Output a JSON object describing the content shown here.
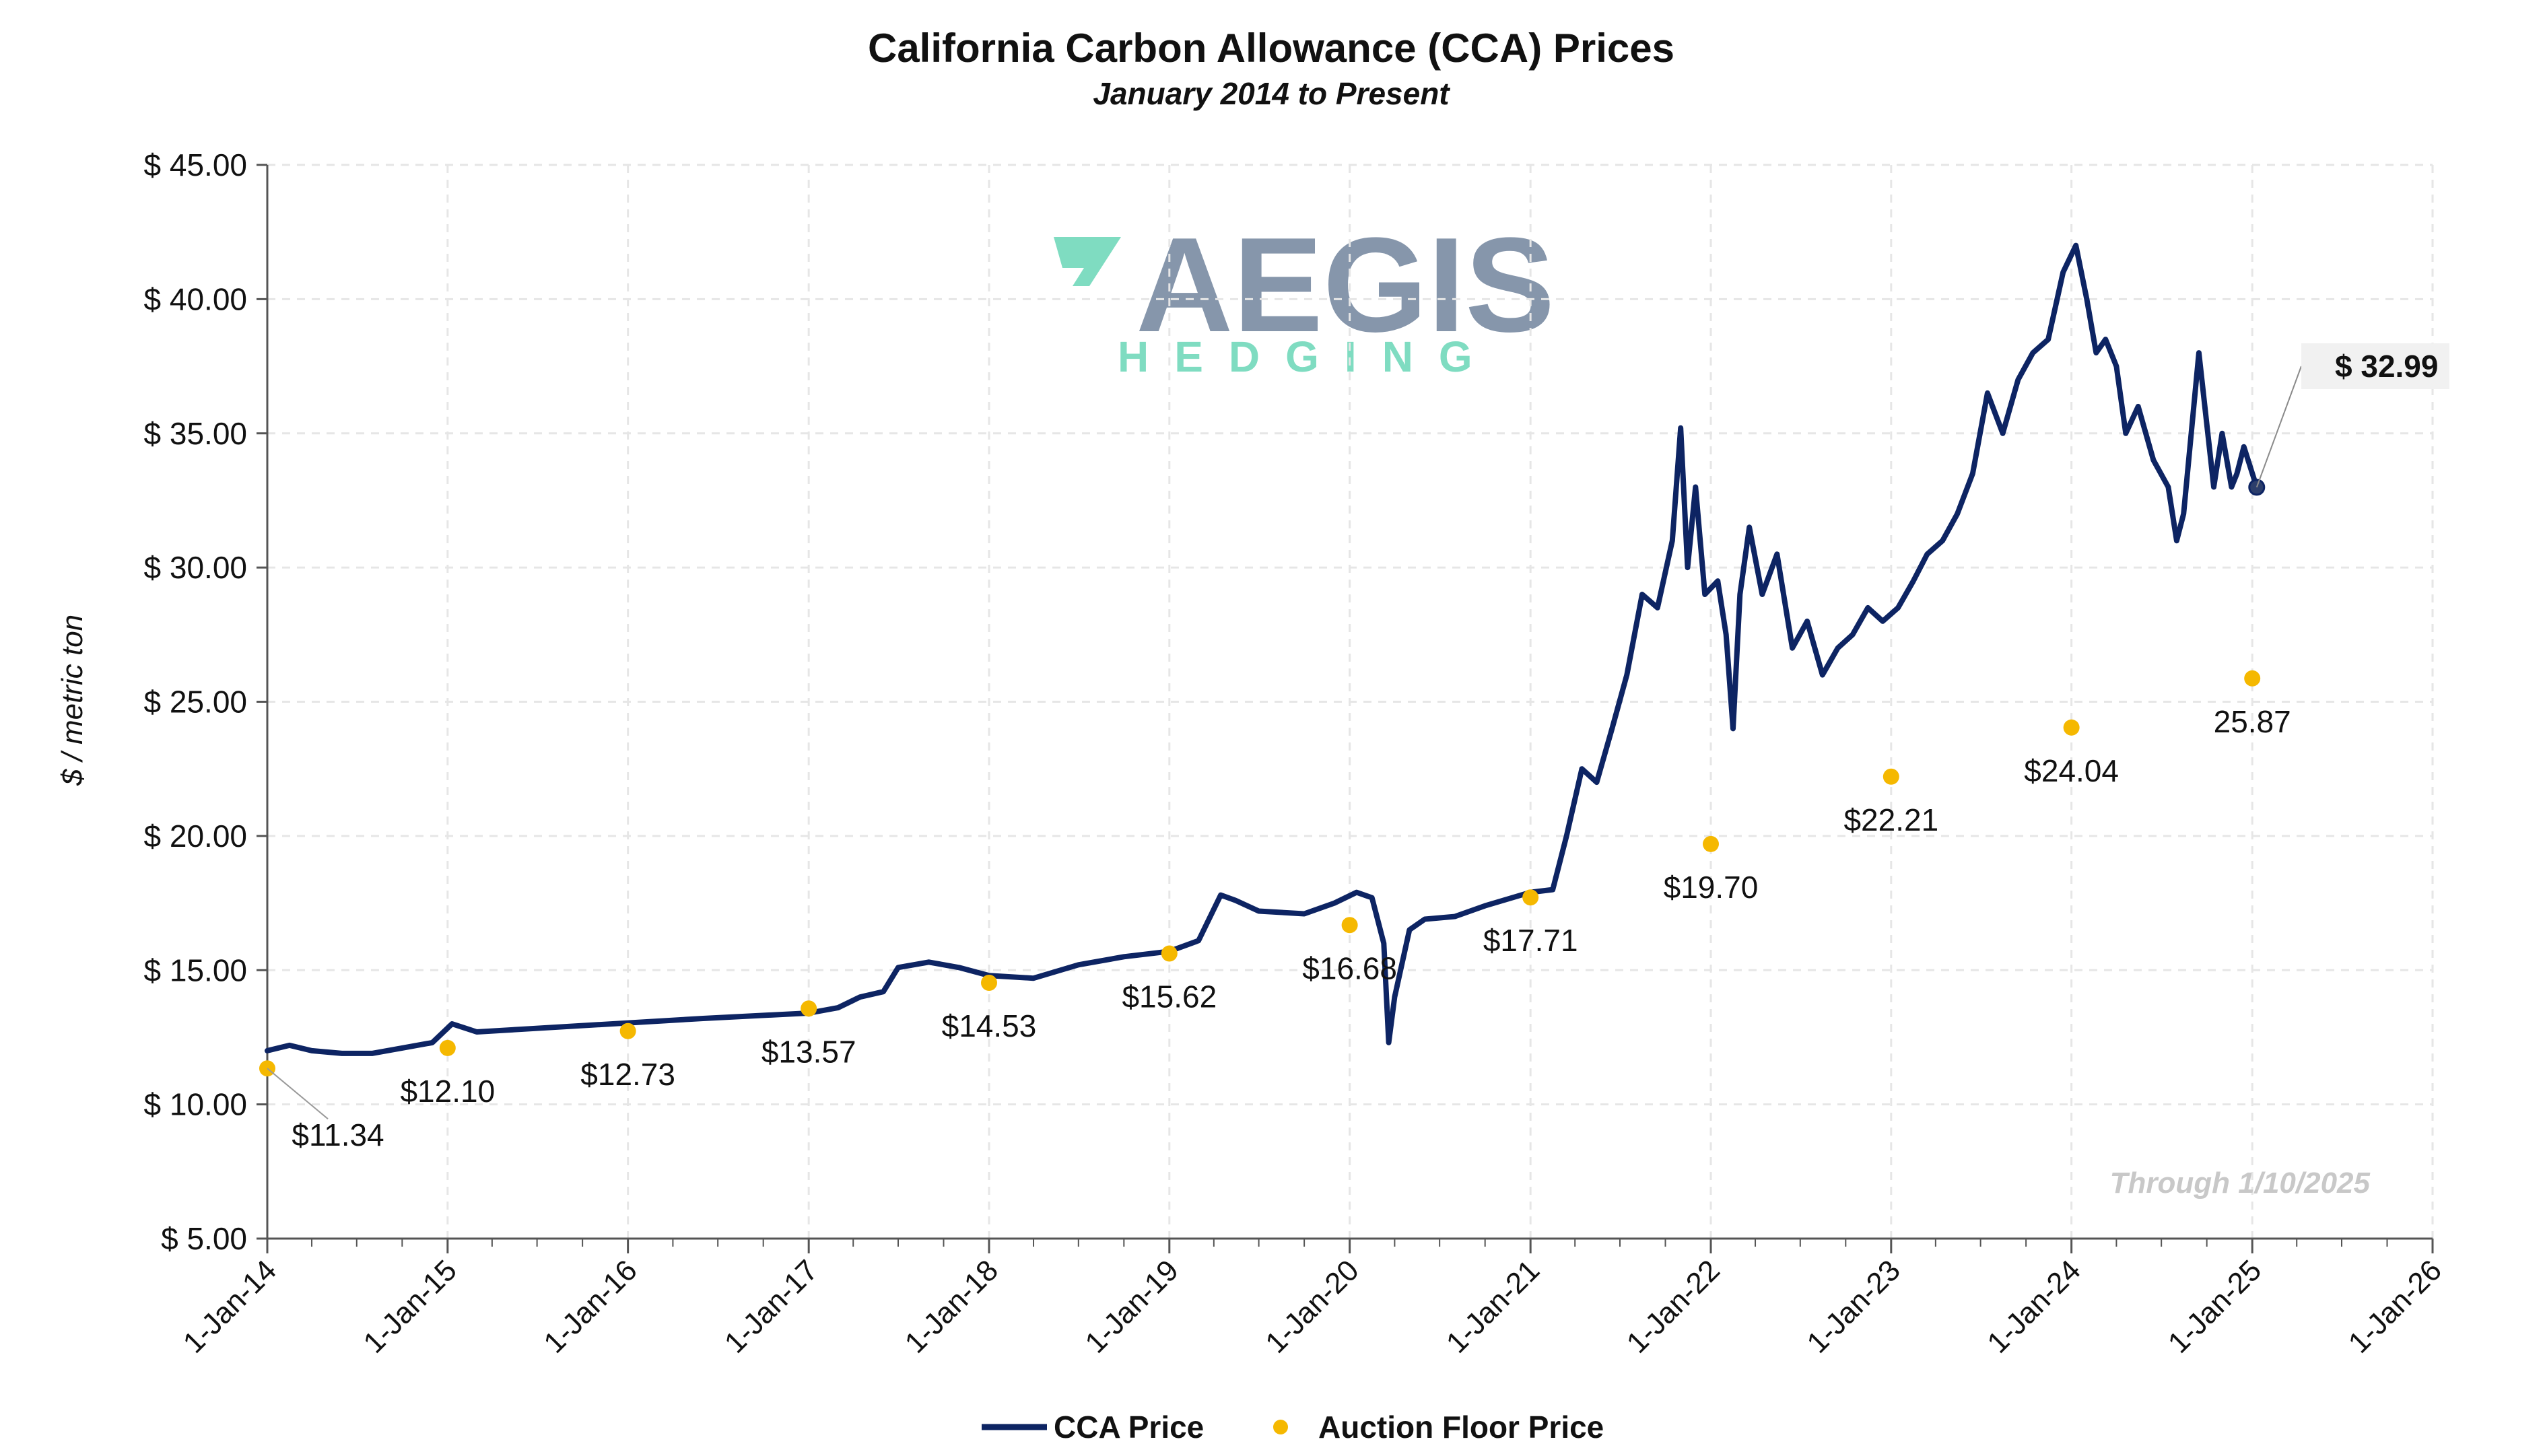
{
  "colors": {
    "cca_line": "#0d2463",
    "floor_dot": "#f5b800",
    "grid": "#e6e6e6",
    "axis": "#555555",
    "callout_box": "#f1f1f1",
    "logo_gray": "#8696ab",
    "logo_teal": "#7fdcc1"
  },
  "logo": {
    "main": "AEGIS",
    "sub": "HEDGING"
  },
  "annotations": {
    "through": "Through 1/10/2025",
    "last_price": "$ 32.99"
  },
  "chart_data": {
    "type": "line",
    "title": "California Carbon Allowance (CCA) Prices",
    "subtitle": "January 2014 to Present",
    "xlabel": "",
    "ylabel": "$ / metric ton",
    "xlim": [
      "2014-01-01",
      "2026-01-01"
    ],
    "ylim": [
      5,
      45
    ],
    "grid": true,
    "legend_position": "bottom",
    "y_ticks": [
      5,
      10,
      15,
      20,
      25,
      30,
      35,
      40,
      45
    ],
    "y_tick_labels": [
      "$ 5.00",
      "$ 10.00",
      "$ 15.00",
      "$ 20.00",
      "$ 25.00",
      "$ 30.00",
      "$ 35.00",
      "$ 40.00",
      "$ 45.00"
    ],
    "x_ticks": [
      "2014-01-01",
      "2015-01-01",
      "2016-01-01",
      "2017-01-01",
      "2018-01-01",
      "2019-01-01",
      "2020-01-01",
      "2021-01-01",
      "2022-01-01",
      "2023-01-01",
      "2024-01-01",
      "2025-01-01",
      "2026-01-01"
    ],
    "x_tick_labels": [
      "1-Jan-14",
      "1-Jan-15",
      "1-Jan-16",
      "1-Jan-17",
      "1-Jan-18",
      "1-Jan-19",
      "1-Jan-20",
      "1-Jan-21",
      "1-Jan-22",
      "1-Jan-23",
      "1-Jan-24",
      "1-Jan-25",
      "1-Jan-26"
    ],
    "series": [
      {
        "name": "CCA Price",
        "type": "line",
        "x": [
          "2014-01-01",
          "2014-02-15",
          "2014-04-01",
          "2014-06-01",
          "2014-08-01",
          "2014-10-01",
          "2014-12-01",
          "2015-01-10",
          "2015-03-01",
          "2016-06-01",
          "2017-01-01",
          "2017-03-01",
          "2017-04-15",
          "2017-06-01",
          "2017-07-01",
          "2017-09-01",
          "2017-11-01",
          "2018-01-01",
          "2018-04-01",
          "2018-07-01",
          "2018-10-01",
          "2019-01-01",
          "2019-03-01",
          "2019-04-15",
          "2019-05-15",
          "2019-07-01",
          "2019-10-01",
          "2019-12-01",
          "2020-01-15",
          "2020-02-15",
          "2020-03-10",
          "2020-03-20",
          "2020-04-01",
          "2020-05-01",
          "2020-06-01",
          "2020-08-01",
          "2020-10-01",
          "2021-01-01",
          "2021-02-15",
          "2021-03-15",
          "2021-04-15",
          "2021-05-15",
          "2021-06-15",
          "2021-07-15",
          "2021-08-15",
          "2021-09-15",
          "2021-10-15",
          "2021-11-01",
          "2021-11-15",
          "2021-12-01",
          "2021-12-20",
          "2022-01-15",
          "2022-02-01",
          "2022-02-15",
          "2022-03-01",
          "2022-03-20",
          "2022-04-15",
          "2022-05-15",
          "2022-06-15",
          "2022-07-15",
          "2022-08-15",
          "2022-09-15",
          "2022-10-15",
          "2022-11-15",
          "2022-12-15",
          "2023-01-15",
          "2023-02-15",
          "2023-03-15",
          "2023-04-15",
          "2023-05-15",
          "2023-06-15",
          "2023-07-15",
          "2023-08-15",
          "2023-09-15",
          "2023-10-15",
          "2023-11-15",
          "2023-12-15",
          "2024-01-10",
          "2024-02-01",
          "2024-02-20",
          "2024-03-10",
          "2024-04-01",
          "2024-04-20",
          "2024-05-15",
          "2024-06-15",
          "2024-07-15",
          "2024-08-01",
          "2024-08-15",
          "2024-09-15",
          "2024-10-15",
          "2024-11-01",
          "2024-11-20",
          "2024-12-01",
          "2024-12-15",
          "2025-01-10"
        ],
        "y": [
          12.0,
          12.2,
          12.0,
          11.9,
          11.9,
          12.1,
          12.3,
          13.0,
          12.7,
          13.2,
          13.4,
          13.6,
          14.0,
          14.2,
          15.1,
          15.3,
          15.1,
          14.8,
          14.7,
          15.2,
          15.5,
          15.7,
          16.1,
          17.8,
          17.6,
          17.2,
          17.1,
          17.5,
          17.9,
          17.7,
          16.0,
          12.3,
          14.0,
          16.5,
          16.9,
          17.0,
          17.4,
          17.9,
          18.0,
          20.0,
          22.5,
          22.0,
          24.0,
          26.0,
          29.0,
          28.5,
          31.0,
          35.2,
          30.0,
          33.0,
          29.0,
          29.5,
          27.5,
          24.0,
          29.0,
          31.5,
          29.0,
          30.5,
          27.0,
          28.0,
          26.0,
          27.0,
          27.5,
          28.5,
          28.0,
          28.5,
          29.5,
          30.5,
          31.0,
          32.0,
          33.5,
          36.5,
          35.0,
          37.0,
          38.0,
          38.5,
          41.0,
          42.0,
          40.0,
          38.0,
          38.5,
          37.5,
          35.0,
          36.0,
          34.0,
          33.0,
          31.0,
          32.0,
          38.0,
          33.0,
          35.0,
          33.0,
          33.5,
          34.5,
          32.99
        ]
      },
      {
        "name": "Auction Floor Price",
        "type": "scatter",
        "x": [
          "2014-01-01",
          "2015-01-01",
          "2016-01-01",
          "2017-01-01",
          "2018-01-01",
          "2019-01-01",
          "2020-01-01",
          "2021-01-01",
          "2022-01-01",
          "2023-01-01",
          "2024-01-01",
          "2025-01-01"
        ],
        "y": [
          11.34,
          12.1,
          12.73,
          13.57,
          14.53,
          15.62,
          16.68,
          17.71,
          19.7,
          22.21,
          24.04,
          25.87
        ],
        "labels": [
          "$11.34",
          "$12.10",
          "$12.73",
          "$13.57",
          "$14.53",
          "$15.62",
          "$16.68",
          "$17.71",
          "$19.70",
          "$22.21",
          "$24.04",
          "25.87"
        ]
      }
    ]
  }
}
